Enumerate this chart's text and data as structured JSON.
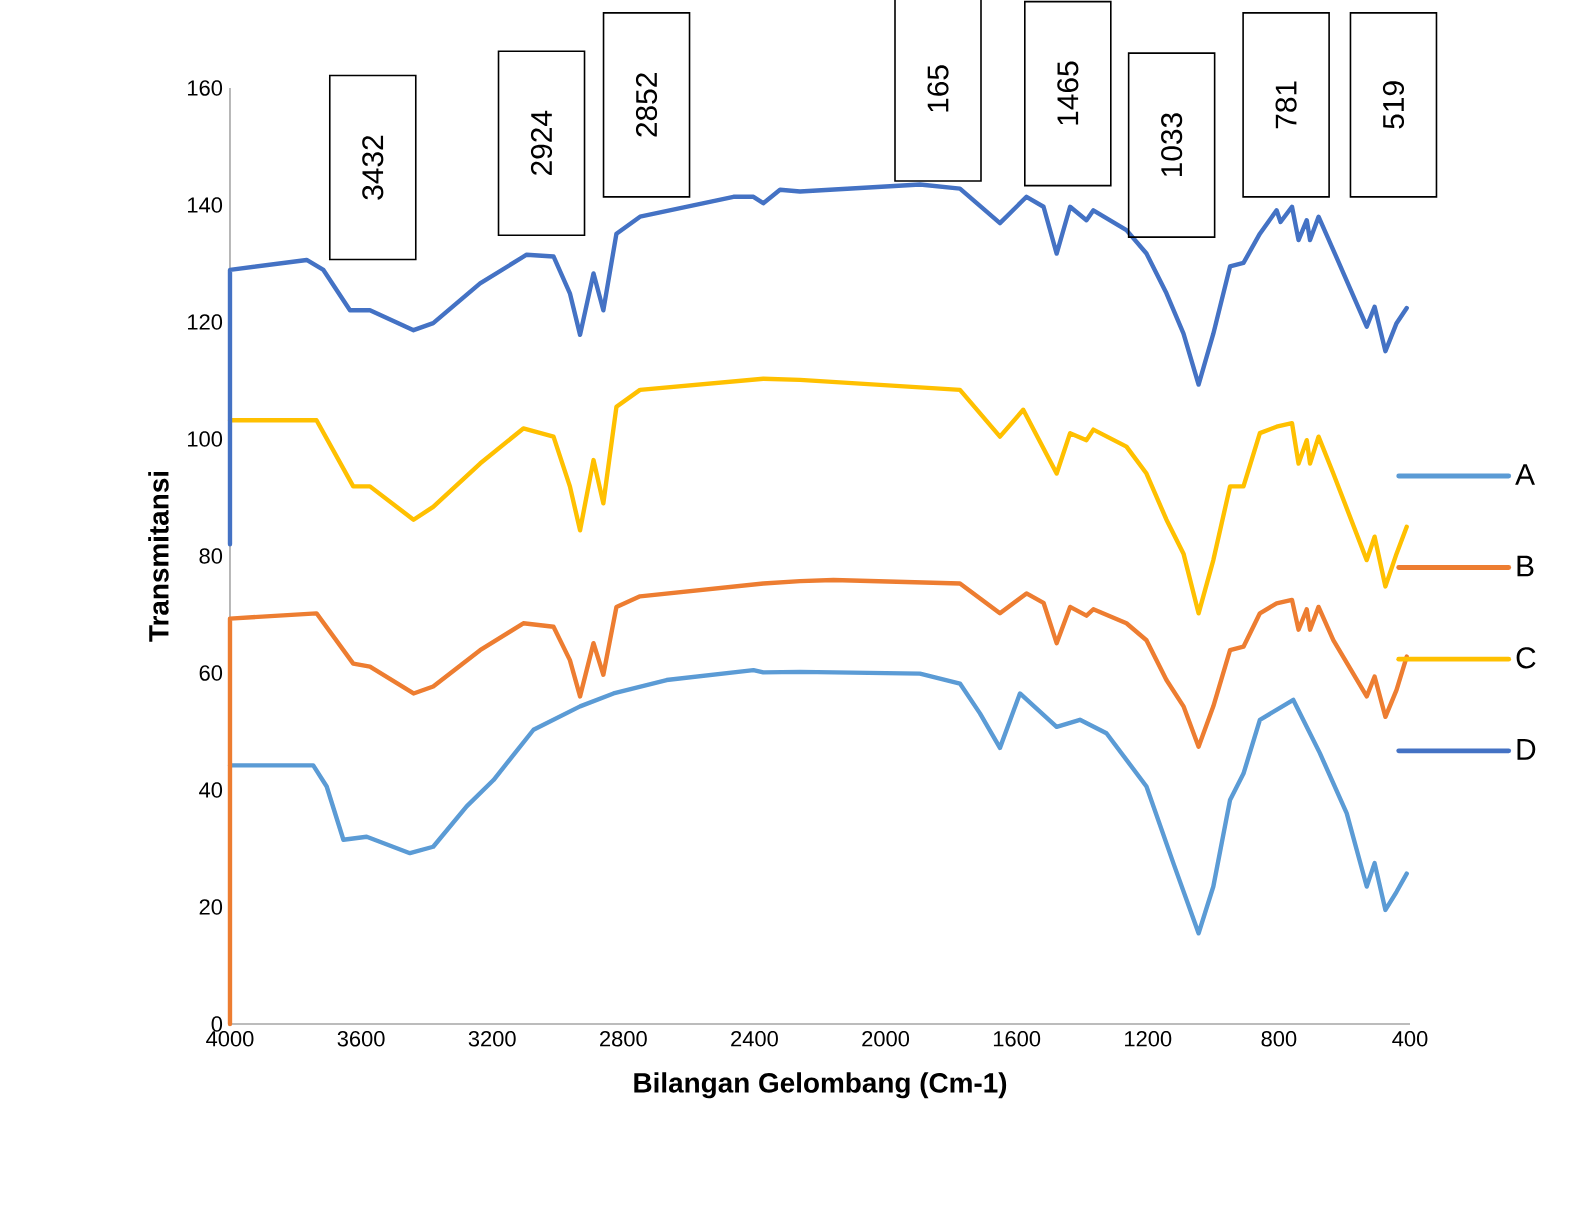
{
  "chart_data": {
    "type": "line",
    "xlabel": "Bilangan  Gelombang (Cm-1)",
    "ylabel": "Transmitansi",
    "xlim": [
      4000,
      400
    ],
    "ylim": [
      0,
      160
    ],
    "xticks": [
      4000,
      3600,
      3200,
      2800,
      2400,
      2000,
      1600,
      1200,
      800,
      400
    ],
    "yticks": [
      0,
      20,
      40,
      60,
      80,
      100,
      120,
      140,
      160
    ],
    "legend": "right",
    "annotations": [
      "3432",
      "2924",
      "2852",
      "165",
      "1465",
      "1033",
      "781",
      "519"
    ],
    "series": [
      {
        "name": "A",
        "color": "#5b9bd5",
        "x": [
          4000,
          3746,
          3705,
          3654,
          3583,
          3451,
          3380,
          3278,
          3196,
          3074,
          2932,
          2830,
          2668,
          2403,
          2373,
          2261,
          1895,
          1773,
          1712,
          1651,
          1590,
          1478,
          1407,
          1326,
          1204,
          1122,
          1045,
          1000,
          949,
          908,
          858,
          807,
          756,
          675,
          593,
          532,
          508,
          475,
          441,
          410
        ],
        "values": [
          44.2,
          44.2,
          40.6,
          31.5,
          32,
          29.2,
          30.3,
          37.2,
          41.7,
          50.3,
          54.3,
          56.5,
          58.8,
          60.5,
          60.1,
          60.2,
          59.9,
          58.2,
          53.1,
          47.2,
          56.5,
          50.8,
          52,
          49.7,
          40.6,
          27.5,
          15.5,
          23.5,
          38.3,
          42.8,
          52,
          53.7,
          55.4,
          46.3,
          36,
          23.5,
          27.5,
          19.5,
          22.6,
          25.7
        ]
      },
      {
        "name": "B",
        "color": "#ed7d31",
        "x": [
          4000,
          4000,
          3736,
          3624,
          3573,
          3440,
          3380,
          3237,
          3105,
          3013,
          2963,
          2932,
          2891,
          2861,
          2821,
          2749,
          2373,
          2261,
          2159,
          1773,
          1651,
          1570,
          1518,
          1478,
          1437,
          1387,
          1366,
          1265,
          1204,
          1143,
          1091,
          1045,
          1000,
          949,
          908,
          858,
          807,
          760,
          740,
          715,
          705,
          679,
          634,
          532,
          508,
          475,
          441,
          410
        ],
        "values": [
          0,
          69.3,
          70.2,
          61.6,
          61.1,
          56.5,
          57.7,
          63.9,
          68.5,
          67.9,
          62.2,
          56,
          65.1,
          59.7,
          71.3,
          73.1,
          75.3,
          75.7,
          75.9,
          75.3,
          70.2,
          73.6,
          72,
          65.1,
          71.3,
          69.8,
          70.9,
          68.5,
          65.6,
          58.8,
          54.3,
          47.4,
          54.3,
          63.9,
          64.5,
          70.2,
          71.9,
          72.5,
          67.4,
          70.9,
          67.4,
          71.3,
          65.6,
          56,
          59.4,
          52.5,
          57.1,
          62.8
        ]
      },
      {
        "name": "C",
        "color": "#ffc000",
        "x": [
          4000,
          3736,
          3624,
          3573,
          3440,
          3380,
          3237,
          3105,
          3013,
          2963,
          2932,
          2891,
          2861,
          2821,
          2749,
          2373,
          2261,
          1773,
          1651,
          1580,
          1478,
          1437,
          1387,
          1366,
          1265,
          1204,
          1143,
          1091,
          1045,
          1000,
          949,
          908,
          858,
          807,
          760,
          740,
          715,
          705,
          679,
          634,
          532,
          508,
          475,
          441,
          410
        ],
        "values": [
          103.2,
          103.2,
          91.9,
          91.9,
          86.2,
          88.4,
          95.8,
          101.8,
          100.4,
          91.9,
          84.4,
          96.4,
          89,
          105.5,
          108.4,
          110.3,
          110.1,
          108.4,
          100.4,
          105,
          94.1,
          101,
          99.8,
          101.6,
          98.7,
          94.1,
          86.2,
          80.4,
          70.2,
          79.3,
          91.9,
          91.9,
          101,
          102.1,
          102.7,
          95.8,
          99.8,
          95.8,
          100.4,
          94.1,
          79.3,
          83.3,
          74.8,
          80.4,
          85
        ]
      },
      {
        "name": "D",
        "color": "#4472c4",
        "x": [
          4000,
          4000,
          3766,
          3715,
          3634,
          3573,
          3440,
          3380,
          3237,
          3095,
          3013,
          2963,
          2932,
          2891,
          2861,
          2821,
          2749,
          2464,
          2403,
          2373,
          2322,
          2261,
          1895,
          1773,
          1651,
          1570,
          1518,
          1478,
          1437,
          1387,
          1366,
          1265,
          1204,
          1143,
          1091,
          1045,
          1000,
          949,
          908,
          858,
          807,
          795,
          760,
          740,
          715,
          705,
          679,
          634,
          532,
          508,
          475,
          441,
          410
        ],
        "values": [
          82,
          128.9,
          130.6,
          128.9,
          122,
          122,
          118.6,
          119.8,
          126.6,
          131.5,
          131.2,
          124.9,
          117.8,
          128.3,
          122,
          135.1,
          138,
          141.4,
          141.4,
          140.3,
          142.6,
          142.3,
          143.5,
          142.8,
          136.9,
          141.4,
          139.7,
          131.7,
          139.7,
          137.4,
          139.1,
          135.7,
          131.7,
          124.9,
          118,
          109.3,
          118,
          129.5,
          130.1,
          135.1,
          139.1,
          137.1,
          139.7,
          134,
          137.4,
          134,
          138,
          132.3,
          119.2,
          122.6,
          115,
          119.8,
          122.4
        ]
      }
    ]
  }
}
